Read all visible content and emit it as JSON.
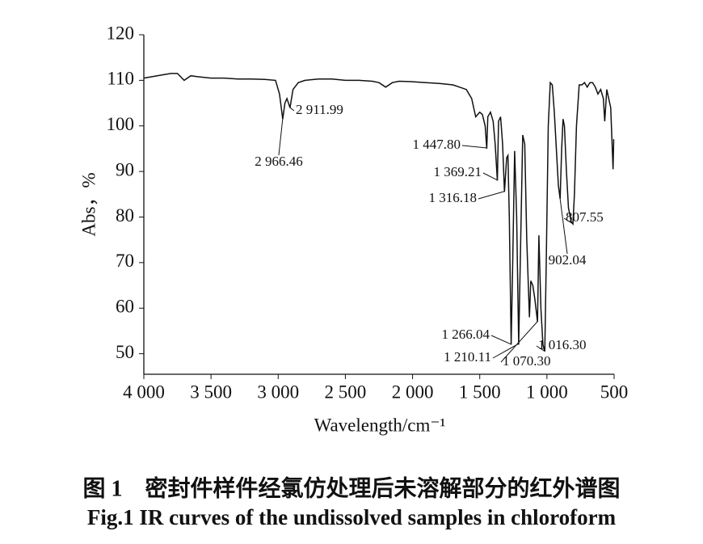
{
  "chart_data": {
    "type": "line",
    "x_label": "Wavelength/cm⁻¹",
    "y_label": "Abs，%",
    "caption_cn": "图 1　密封件样件经氯仿处理后未溶解部分的红外谱图",
    "caption_en": "Fig.1 IR curves of the undissolved samples in chloroform",
    "color": "#111111",
    "xlim": [
      4000,
      500
    ],
    "xticks": [
      {
        "value": 4000,
        "label": "4 000"
      },
      {
        "value": 3500,
        "label": "3 500"
      },
      {
        "value": 3000,
        "label": "3 000"
      },
      {
        "value": 2500,
        "label": "2 500"
      },
      {
        "value": 2000,
        "label": "2 000"
      },
      {
        "value": 1500,
        "label": "1 500"
      },
      {
        "value": 1000,
        "label": "1 000"
      },
      500
    ],
    "ylim": [
      45.5,
      120
    ],
    "yticks": [
      50,
      60,
      70,
      80,
      90,
      100,
      110,
      120
    ],
    "x": [
      4000,
      3900,
      3800,
      3750,
      3700,
      3650,
      3600,
      3500,
      3400,
      3300,
      3200,
      3100,
      3020,
      2990,
      2966,
      2950,
      2935,
      2912,
      2890,
      2850,
      2800,
      2700,
      2600,
      2500,
      2400,
      2300,
      2250,
      2200,
      2150,
      2100,
      2000,
      1900,
      1800,
      1700,
      1650,
      1600,
      1560,
      1530,
      1500,
      1480,
      1460,
      1448,
      1440,
      1420,
      1400,
      1385,
      1369,
      1360,
      1345,
      1330,
      1316,
      1300,
      1290,
      1280,
      1266,
      1255,
      1240,
      1225,
      1210,
      1195,
      1180,
      1165,
      1150,
      1130,
      1120,
      1105,
      1090,
      1070,
      1060,
      1045,
      1030,
      1016,
      1005,
      990,
      975,
      960,
      945,
      930,
      915,
      902,
      890,
      880,
      870,
      855,
      840,
      820,
      807,
      795,
      780,
      760,
      740,
      720,
      700,
      680,
      660,
      640,
      620,
      600,
      580,
      570,
      555,
      540,
      525,
      515,
      508,
      503,
      500
    ],
    "values": [
      110.5,
      111,
      111.5,
      111.5,
      110,
      111,
      110.8,
      110.5,
      110.5,
      110.3,
      110.3,
      110.2,
      110,
      107,
      101.5,
      105,
      106,
      104,
      108,
      109.5,
      110,
      110.3,
      110.3,
      110,
      110,
      109.8,
      109.5,
      108.5,
      109.5,
      109.8,
      109.7,
      109.5,
      109.3,
      109,
      108.5,
      108,
      106,
      102,
      103,
      102.5,
      100,
      95,
      102,
      103,
      101,
      96,
      88,
      101,
      102,
      96,
      85.5,
      93,
      93.5,
      80,
      52,
      70,
      94.5,
      80,
      52,
      75,
      98,
      96,
      75,
      58,
      66,
      65,
      62,
      57,
      76,
      60,
      52,
      50.5,
      70,
      100,
      109.5,
      109,
      103,
      95,
      87,
      84,
      95,
      101.5,
      100,
      90,
      82,
      79,
      78.5,
      85,
      100,
      109,
      109,
      109.5,
      108.5,
      109.5,
      109.5,
      108.5,
      107,
      108,
      106,
      101,
      108,
      106,
      104,
      96,
      90.5,
      97,
      97
    ],
    "annotations": [
      {
        "x": 2966.46,
        "label": "2 966.46"
      },
      {
        "x": 2911.99,
        "label": "2 911.99"
      },
      {
        "x": 1447.8,
        "label": "1 447.80"
      },
      {
        "x": 1369.21,
        "label": "1 369.21"
      },
      {
        "x": 1316.18,
        "label": "1 316.18"
      },
      {
        "x": 1266.04,
        "label": "1 266.04"
      },
      {
        "x": 1210.11,
        "label": "1 210.11"
      },
      {
        "x": 1070.3,
        "label": "1 070.30"
      },
      {
        "x": 1016.3,
        "label": "1 016.30"
      },
      {
        "x": 902.04,
        "label": "902.04"
      },
      {
        "x": 807.55,
        "label": "807.55"
      }
    ]
  }
}
